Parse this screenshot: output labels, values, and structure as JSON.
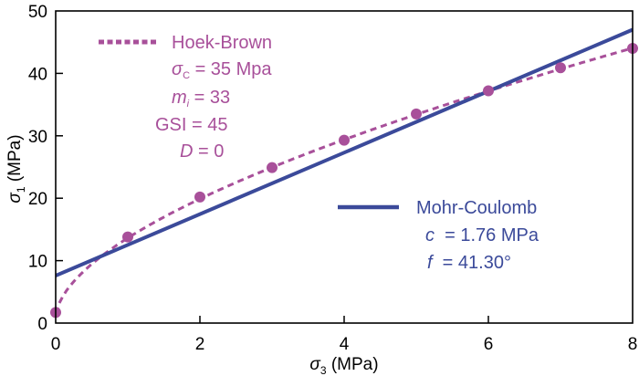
{
  "chart_data": {
    "type": "line",
    "xlabel": {
      "symbol": "σ",
      "sub": "3",
      "unit": " (MPa)"
    },
    "ylabel": {
      "symbol": "σ",
      "sub": "1",
      "unit": " (MPa)"
    },
    "xlim": [
      0,
      8
    ],
    "ylim": [
      0,
      50
    ],
    "xticks": [
      "0",
      "2",
      "4",
      "6",
      "8"
    ],
    "yticks": [
      "0",
      "10",
      "20",
      "30",
      "40",
      "50"
    ],
    "grid": false,
    "colors": {
      "hoek_brown": "#a8509a",
      "mohr_coulomb": "#3b4a9a",
      "axis": "#000000"
    },
    "points": {
      "x": [
        0,
        1,
        2,
        3,
        4,
        5,
        6,
        7,
        8
      ],
      "y": [
        1.7,
        13.8,
        20.2,
        24.9,
        29.3,
        33.5,
        37.2,
        40.9,
        44.0
      ]
    },
    "hoek_brown": {
      "legend": "Hoek-Brown",
      "sigma_c_label": {
        "symbol": "σ",
        "sub": "C",
        "rest": " = 35 Mpa"
      },
      "mi_label": {
        "symbol": "m",
        "sub": "i",
        "rest": " = 33"
      },
      "gsi_label": "GSI = 45",
      "d_label": {
        "symbol": "D",
        "rest": " = 0"
      },
      "sigma_c": 35,
      "mi": 33,
      "gsi": 45,
      "d": 0,
      "style": "dashed"
    },
    "mohr_coulomb": {
      "legend": "Mohr-Coulomb",
      "c_label": {
        "symbol": "c",
        "rest": "  = 1.76 MPa"
      },
      "f_label": {
        "symbol": "f",
        "rest": "  = 41.30°"
      },
      "x": [
        0,
        8
      ],
      "y": [
        7.6,
        47.0
      ],
      "style": "solid"
    },
    "legend_placement": "top-left and center-right"
  }
}
